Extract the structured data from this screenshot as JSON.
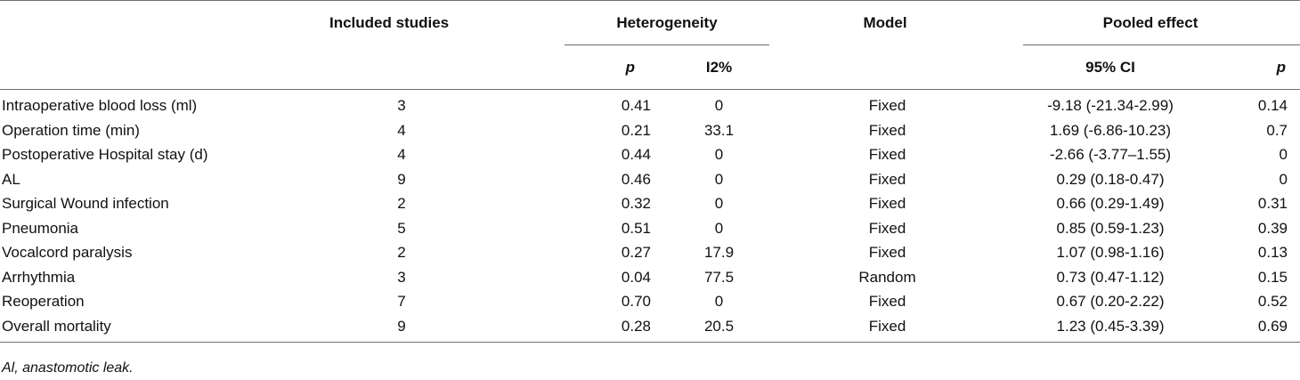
{
  "headers": {
    "label": "",
    "included": "Included studies",
    "heterogeneity": "Heterogeneity",
    "model": "Model",
    "pooled": "Pooled effect",
    "het_p": "p",
    "het_i2": "I2%",
    "ci": "95% CI",
    "pooled_p": "p"
  },
  "rows": [
    {
      "label": "Intraoperative blood loss (ml)",
      "n": "3",
      "p": "0.41",
      "i2": "0",
      "model": "Fixed",
      "ci": "-9.18 (-21.34-2.99)",
      "pp": "0.14"
    },
    {
      "label": "Operation time (min)",
      "n": "4",
      "p": "0.21",
      "i2": "33.1",
      "model": "Fixed",
      "ci": "1.69 (-6.86-10.23)",
      "pp": "0.7"
    },
    {
      "label": "Postoperative Hospital stay (d)",
      "n": "4",
      "p": "0.44",
      "i2": "0",
      "model": "Fixed",
      "ci": "-2.66 (-3.77–1.55)",
      "pp": "0"
    },
    {
      "label": "AL",
      "n": "9",
      "p": "0.46",
      "i2": "0",
      "model": "Fixed",
      "ci": "0.29 (0.18-0.47)",
      "pp": "0"
    },
    {
      "label": "Surgical Wound infection",
      "n": "2",
      "p": "0.32",
      "i2": "0",
      "model": "Fixed",
      "ci": "0.66 (0.29-1.49)",
      "pp": "0.31"
    },
    {
      "label": "Pneumonia",
      "n": "5",
      "p": "0.51",
      "i2": "0",
      "model": "Fixed",
      "ci": "0.85 (0.59-1.23)",
      "pp": "0.39"
    },
    {
      "label": "Vocalcord paralysis",
      "n": "2",
      "p": "0.27",
      "i2": "17.9",
      "model": "Fixed",
      "ci": "1.07 (0.98-1.16)",
      "pp": "0.13"
    },
    {
      "label": "Arrhythmia",
      "n": "3",
      "p": "0.04",
      "i2": "77.5",
      "model": "Random",
      "ci": "0.73 (0.47-1.12)",
      "pp": "0.15"
    },
    {
      "label": "Reoperation",
      "n": "7",
      "p": "0.70",
      "i2": "0",
      "model": "Fixed",
      "ci": "0.67 (0.20-2.22)",
      "pp": "0.52"
    },
    {
      "label": "Overall mortality",
      "n": "9",
      "p": "0.28",
      "i2": "20.5",
      "model": "Fixed",
      "ci": "1.23 (0.45-3.39)",
      "pp": "0.69"
    }
  ],
  "footnote": "Al, anastomotic leak."
}
